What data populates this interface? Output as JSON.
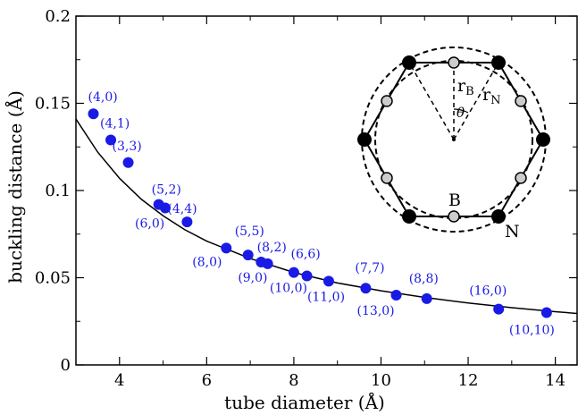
{
  "chart_data": {
    "type": "scatter",
    "xlabel": "tube diameter (Å)",
    "ylabel": "buckling distance (Å)",
    "xlim": [
      3,
      14.5
    ],
    "ylim": [
      0,
      0.2
    ],
    "x_ticks": [
      4,
      6,
      8,
      10,
      12,
      14
    ],
    "x_tick_labels": [
      "4",
      "6",
      "8",
      "10",
      "12",
      "14"
    ],
    "y_ticks": [
      0,
      0.05,
      0.1,
      0.15,
      0.2
    ],
    "y_tick_labels": [
      "0",
      "0.05",
      "0.1",
      "0.15",
      "0.2"
    ],
    "grid": false,
    "marker_color": "#1a1ae6",
    "fit_curve_color": "#000000",
    "fit_curve": {
      "x": [
        3.0,
        3.5,
        4.0,
        4.5,
        5.0,
        5.5,
        6.0,
        7.0,
        8.0,
        9.0,
        10.0,
        11.0,
        12.0,
        13.0,
        14.0,
        14.5
      ],
      "y": [
        0.141,
        0.122,
        0.107,
        0.095,
        0.0855,
        0.0775,
        0.071,
        0.061,
        0.053,
        0.047,
        0.0425,
        0.0387,
        0.0355,
        0.0328,
        0.0305,
        0.0295
      ]
    },
    "points": [
      {
        "label": "(4,0)",
        "x": 3.4,
        "y": 0.144
      },
      {
        "label": "(4,1)",
        "x": 3.8,
        "y": 0.129
      },
      {
        "label": "(3,3)",
        "x": 4.2,
        "y": 0.116
      },
      {
        "label": "(5,2)",
        "x": 4.9,
        "y": 0.092
      },
      {
        "label": "(6,0)",
        "x": 5.05,
        "y": 0.09
      },
      {
        "label": "(4,4)",
        "x": 5.55,
        "y": 0.082
      },
      {
        "label": "(8,0)",
        "x": 6.45,
        "y": 0.067
      },
      {
        "label": "(5,5)",
        "x": 6.95,
        "y": 0.063
      },
      {
        "label": "(9,0)",
        "x": 7.25,
        "y": 0.059
      },
      {
        "label": "(8,2)",
        "x": 7.4,
        "y": 0.058
      },
      {
        "label": "(10,0)",
        "x": 8.0,
        "y": 0.053
      },
      {
        "label": "(6,6)",
        "x": 8.3,
        "y": 0.051
      },
      {
        "label": "(11,0)",
        "x": 8.8,
        "y": 0.048
      },
      {
        "label": "(7,7)",
        "x": 9.65,
        "y": 0.044
      },
      {
        "label": "(13,0)",
        "x": 10.35,
        "y": 0.04
      },
      {
        "label": "(8,8)",
        "x": 11.05,
        "y": 0.038
      },
      {
        "label": "(16,0)",
        "x": 12.7,
        "y": 0.032
      },
      {
        "label": "(10,10)",
        "x": 13.8,
        "y": 0.03
      }
    ],
    "inset": {
      "description_labels": {
        "rB": "r",
        "rB_sub": "B",
        "rN": "r",
        "rN_sub": "N",
        "theta": "θ",
        "B_atom": "B",
        "N_atom": "N"
      },
      "boron_color": "#cccccc",
      "nitrogen_color": "#000000"
    }
  }
}
